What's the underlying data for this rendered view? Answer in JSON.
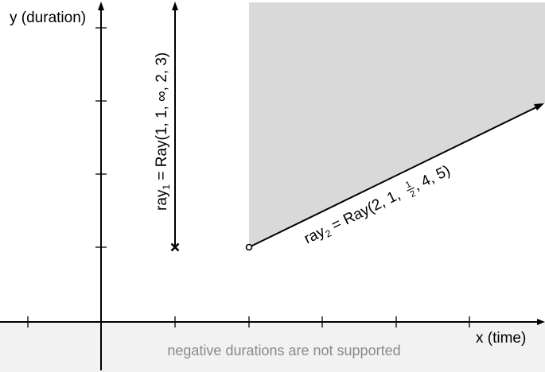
{
  "axes": {
    "x_label": "x (time)",
    "y_label": "y (duration)"
  },
  "rays": [
    {
      "name": "ray",
      "subscript": "1",
      "expression_prefix": " = Ray(1, 1, ",
      "infinity": "∞",
      "expression_suffix": ", 2, 3)"
    },
    {
      "name": "ray",
      "subscript": "2",
      "expression_prefix": " = Ray(2, 1, ",
      "fraction_numerator": "1",
      "fraction_denominator": "2",
      "expression_suffix": ", 4, 5)"
    }
  ],
  "negative_region_note": "negative durations are not supported",
  "colors": {
    "shaded_region": "#d9d9d9",
    "negative_region": "#f2f2f2",
    "line": "#000000",
    "note_text": "#8a8a8a"
  }
}
